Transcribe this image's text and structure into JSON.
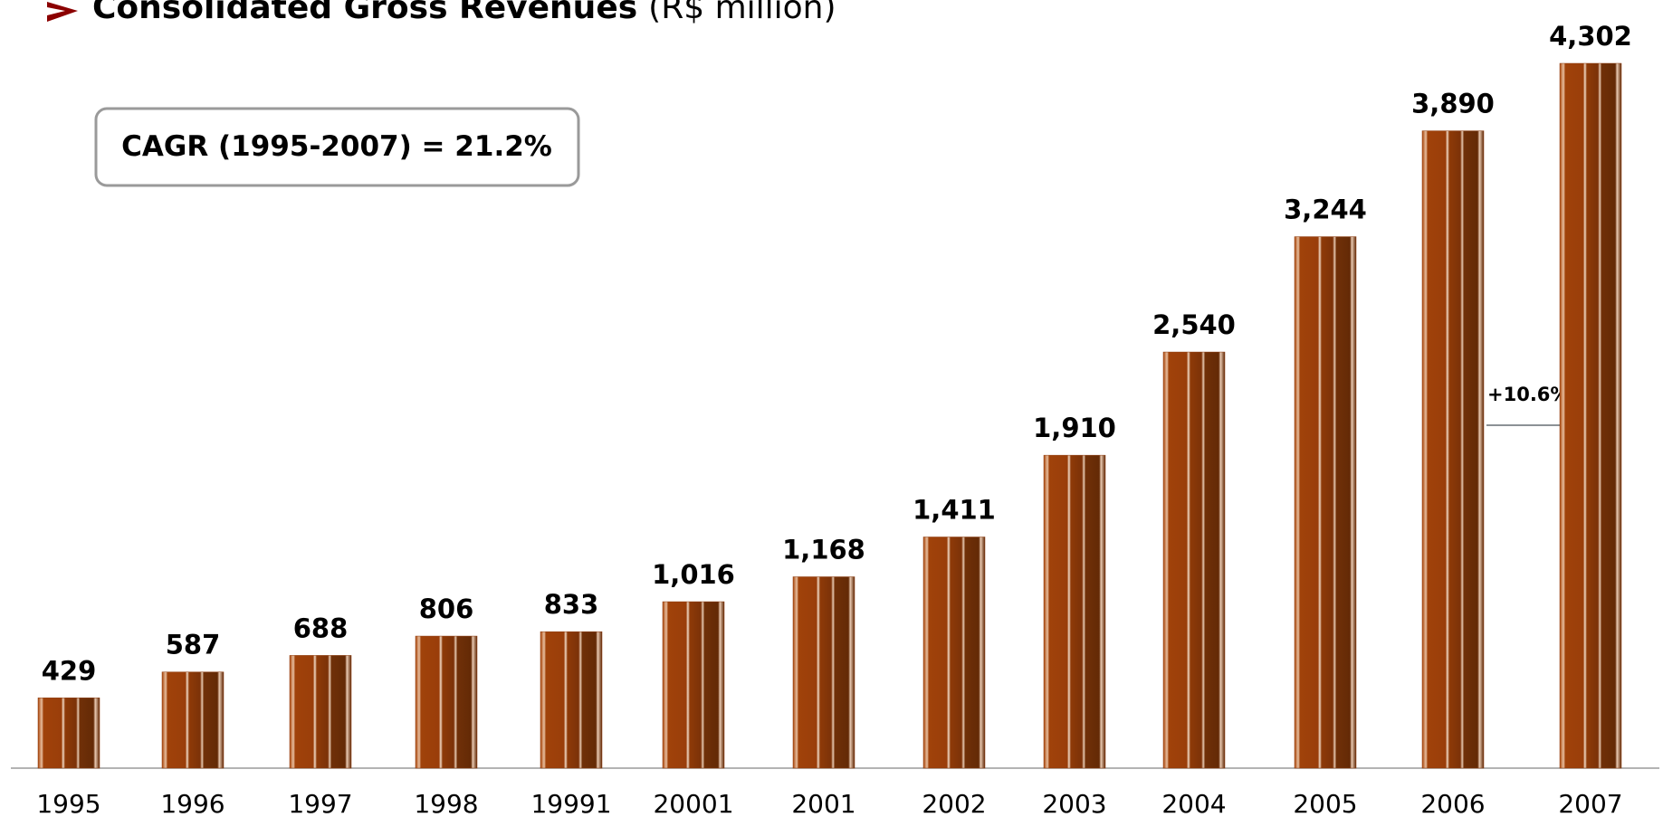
{
  "chart_data": {
    "type": "bar",
    "title": "Consolidated Gross Revenues",
    "unit": "(R$ million)",
    "annotations": [
      "CAGR (1995-2007) = 21.2%",
      "+10.6%"
    ],
    "categories": [
      "1995",
      "1996",
      "1997",
      "1998",
      "19991",
      "20001",
      "2001",
      "2002",
      "2003",
      "2004",
      "2005",
      "2006",
      "2007"
    ],
    "values": [
      429,
      587,
      688,
      806,
      833,
      1016,
      1168,
      1411,
      1910,
      2540,
      3244,
      3890,
      4302
    ],
    "value_labels": [
      "429",
      "587",
      "688",
      "806",
      "833",
      "1,016",
      "1,168",
      "1,411",
      "1,910",
      "2,540",
      "3,244",
      "3,890",
      "4,302"
    ],
    "color": "#8a3608"
  }
}
